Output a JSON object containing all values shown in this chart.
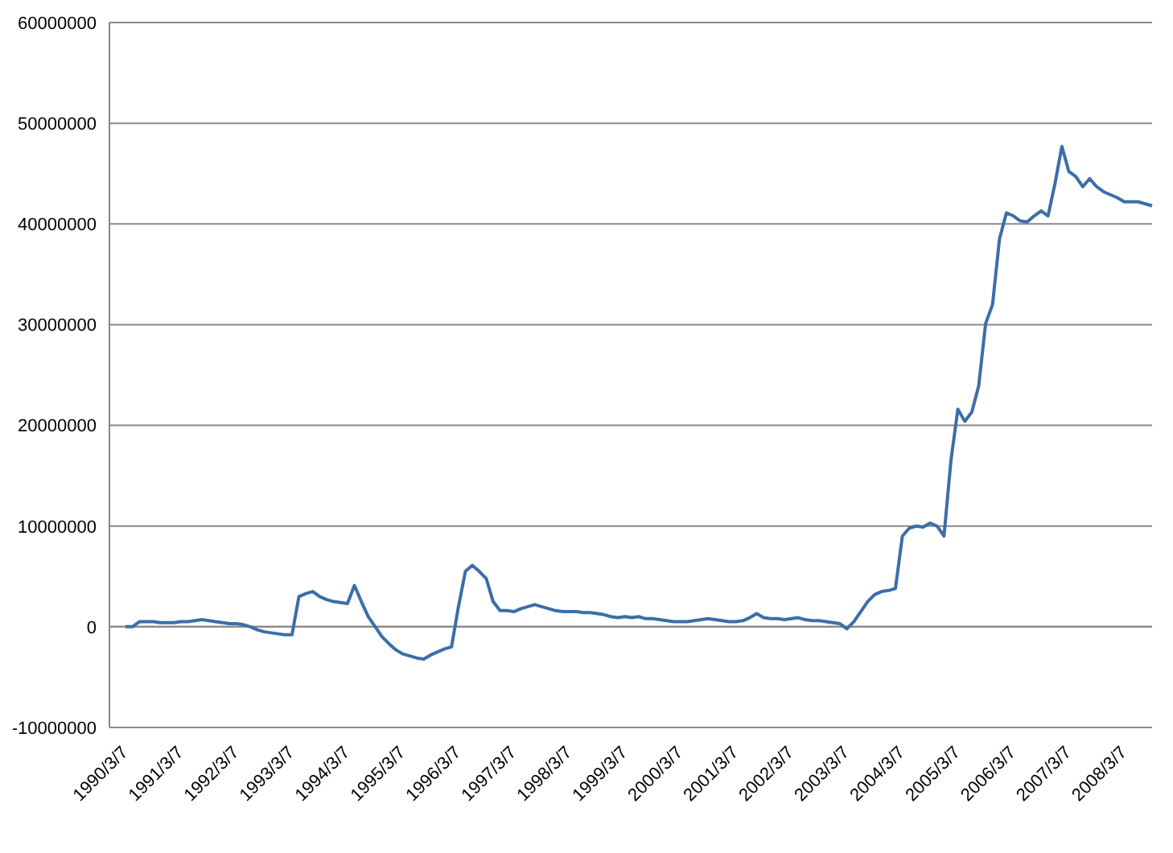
{
  "chart_data": {
    "type": "line",
    "categories": [
      "1990/3/7",
      null,
      null,
      null,
      null,
      null,
      null,
      null,
      "1991/3/7",
      null,
      null,
      null,
      null,
      null,
      null,
      null,
      "1992/3/7",
      null,
      null,
      null,
      null,
      null,
      null,
      null,
      "1993/3/7",
      null,
      null,
      null,
      null,
      null,
      null,
      null,
      "1994/3/7",
      null,
      null,
      null,
      null,
      null,
      null,
      null,
      "1995/3/7",
      null,
      null,
      null,
      null,
      null,
      null,
      null,
      "1996/3/7",
      null,
      null,
      null,
      null,
      null,
      null,
      null,
      "1997/3/7",
      null,
      null,
      null,
      null,
      null,
      null,
      null,
      "1998/3/7",
      null,
      null,
      null,
      null,
      null,
      null,
      null,
      "1999/3/7",
      null,
      null,
      null,
      null,
      null,
      null,
      null,
      "2000/3/7",
      null,
      null,
      null,
      null,
      null,
      null,
      null,
      "2001/3/7",
      null,
      null,
      null,
      null,
      null,
      null,
      null,
      "2002/3/7",
      null,
      null,
      null,
      null,
      null,
      null,
      null,
      "2003/3/7",
      null,
      null,
      null,
      null,
      null,
      null,
      null,
      "2004/3/7",
      null,
      null,
      null,
      null,
      null,
      null,
      null,
      "2005/3/7",
      null,
      null,
      null,
      null,
      null,
      null,
      null,
      "2006/3/7",
      null,
      null,
      null,
      null,
      null,
      null,
      null,
      "2007/3/7",
      null,
      null,
      null,
      null,
      null,
      null,
      null,
      "2008/3/7",
      null,
      null,
      null,
      null
    ],
    "series": [
      {
        "color": "#3b6ea8",
        "values": [
          0,
          0,
          500000,
          500000,
          500000,
          400000,
          400000,
          400000,
          500000,
          500000,
          600000,
          700000,
          600000,
          500000,
          400000,
          300000,
          300000,
          200000,
          0,
          -300000,
          -500000,
          -600000,
          -700000,
          -800000,
          -800000,
          3000000,
          3300000,
          3500000,
          3000000,
          2700000,
          2500000,
          2400000,
          2300000,
          4100000,
          2500000,
          1000000,
          0,
          -1000000,
          -1700000,
          -2300000,
          -2700000,
          -2900000,
          -3100000,
          -3200000,
          -2800000,
          -2500000,
          -2200000,
          -2000000,
          2000000,
          5500000,
          6100000,
          5500000,
          4800000,
          2500000,
          1600000,
          1600000,
          1500000,
          1800000,
          2000000,
          2200000,
          2000000,
          1800000,
          1600000,
          1500000,
          1500000,
          1500000,
          1400000,
          1400000,
          1300000,
          1200000,
          1000000,
          900000,
          1000000,
          900000,
          1000000,
          800000,
          800000,
          700000,
          600000,
          500000,
          500000,
          500000,
          600000,
          700000,
          800000,
          700000,
          600000,
          500000,
          500000,
          600000,
          900000,
          1300000,
          900000,
          800000,
          800000,
          700000,
          800000,
          900000,
          700000,
          600000,
          600000,
          500000,
          400000,
          300000,
          -200000,
          500000,
          1500000,
          2500000,
          3200000,
          3500000,
          3600000,
          3800000,
          9000000,
          9800000,
          10000000,
          9900000,
          10300000,
          10000000,
          9000000,
          16500000,
          21600000,
          20400000,
          21300000,
          23900000,
          30100000,
          32000000,
          38500000,
          41100000,
          40800000,
          40300000,
          40200000,
          40800000,
          41300000,
          40800000,
          44000000,
          47700000,
          45200000,
          44700000,
          43700000,
          44500000,
          43700000,
          43200000,
          42900000,
          42600000,
          42200000,
          42200000,
          42200000,
          42000000,
          41800000
        ]
      }
    ],
    "ylim": [
      -10000000,
      60000000
    ],
    "yticks": [
      -10000000,
      0,
      10000000,
      20000000,
      30000000,
      40000000,
      50000000,
      60000000
    ],
    "grid": "y",
    "marker": "none",
    "line_style": "solid"
  }
}
